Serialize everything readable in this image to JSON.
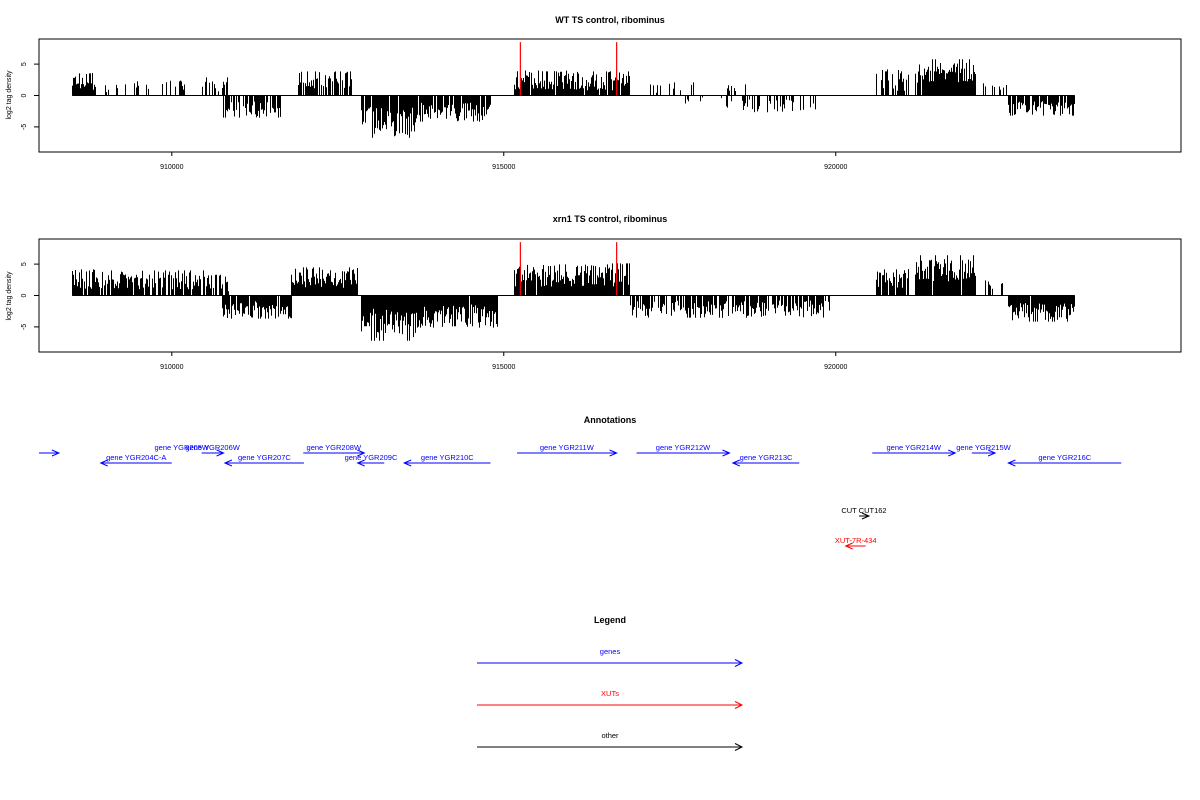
{
  "chart_data": [
    {
      "type": "bar",
      "title": "WT TS control, ribominus",
      "ylabel": "log2 tag density",
      "xlim": [
        908000,
        925200
      ],
      "ylim": [
        -9,
        9
      ],
      "x_ticks": [
        910000,
        915000,
        920000
      ],
      "x_tick_labels": [
        "910000",
        "915000",
        "920000"
      ],
      "y_ticks": [
        -5,
        0,
        5
      ],
      "y_tick_labels": [
        "-5",
        "0",
        "5"
      ],
      "bar_color": "#000000",
      "marker_color": "#ff0000",
      "markers": [
        {
          "x": 915250,
          "y": 8.5
        },
        {
          "x": 916700,
          "y": 8.5
        }
      ],
      "segments": [
        {
          "x0": 908500,
          "x1": 908850,
          "mean": 2.2,
          "amp": 1.4,
          "density": 0.9
        },
        {
          "x0": 909000,
          "x1": 910200,
          "mean": 1.4,
          "amp": 1.0,
          "density": 0.22
        },
        {
          "x0": 910450,
          "x1": 910850,
          "mean": 1.8,
          "amp": 1.2,
          "density": 0.55
        },
        {
          "x0": 910750,
          "x1": 911650,
          "mean": -2.2,
          "amp": 1.3,
          "density": 0.8
        },
        {
          "x0": 911900,
          "x1": 912700,
          "mean": 2.4,
          "amp": 1.5,
          "density": 0.7
        },
        {
          "x0": 912850,
          "x1": 913700,
          "mean": -4.2,
          "amp": 2.4,
          "density": 0.95
        },
        {
          "x0": 913700,
          "x1": 914800,
          "mean": -2.6,
          "amp": 1.5,
          "density": 0.85
        },
        {
          "x0": 915150,
          "x1": 916900,
          "mean": 2.4,
          "amp": 1.6,
          "density": 0.95
        },
        {
          "x0": 917200,
          "x1": 917900,
          "mean": 1.3,
          "amp": 0.9,
          "density": 0.25
        },
        {
          "x0": 917700,
          "x1": 918000,
          "mean": -0.8,
          "amp": 0.5,
          "density": 0.3
        },
        {
          "x0": 918200,
          "x1": 919700,
          "mean": -1.6,
          "amp": 1.2,
          "density": 0.35
        },
        {
          "x0": 918300,
          "x1": 918700,
          "mean": 1.2,
          "amp": 0.8,
          "density": 0.3
        },
        {
          "x0": 920600,
          "x1": 921100,
          "mean": 2.4,
          "amp": 1.8,
          "density": 0.7
        },
        {
          "x0": 921200,
          "x1": 922100,
          "mean": 3.6,
          "amp": 1.6,
          "density": 0.98
        },
        {
          "x0": 922200,
          "x1": 922600,
          "mean": 1.2,
          "amp": 0.8,
          "density": 0.3
        },
        {
          "x0": 922600,
          "x1": 923600,
          "mean": -2.0,
          "amp": 1.1,
          "density": 0.9
        }
      ]
    },
    {
      "type": "bar",
      "title": "xrn1 TS control, ribominus",
      "ylabel": "log2 tag density",
      "xlim": [
        908000,
        925200
      ],
      "ylim": [
        -9,
        9
      ],
      "x_ticks": [
        910000,
        915000,
        920000
      ],
      "x_tick_labels": [
        "910000",
        "915000",
        "920000"
      ],
      "y_ticks": [
        -5,
        0,
        5
      ],
      "y_tick_labels": [
        "-5",
        "0",
        "5"
      ],
      "bar_color": "#000000",
      "marker_color": "#ff0000",
      "markers": [
        {
          "x": 915250,
          "y": 8.5
        },
        {
          "x": 916700,
          "y": 8.5
        }
      ],
      "segments": [
        {
          "x0": 908500,
          "x1": 908900,
          "mean": 2.6,
          "amp": 1.6,
          "density": 0.95
        },
        {
          "x0": 908900,
          "x1": 910500,
          "mean": 2.5,
          "amp": 1.5,
          "density": 0.85
        },
        {
          "x0": 910500,
          "x1": 910850,
          "mean": 2.0,
          "amp": 1.4,
          "density": 0.7
        },
        {
          "x0": 910750,
          "x1": 911800,
          "mean": -2.3,
          "amp": 1.4,
          "density": 0.9
        },
        {
          "x0": 911800,
          "x1": 912800,
          "mean": 2.8,
          "amp": 1.6,
          "density": 0.95
        },
        {
          "x0": 912850,
          "x1": 913700,
          "mean": -4.5,
          "amp": 2.5,
          "density": 0.98
        },
        {
          "x0": 913700,
          "x1": 914900,
          "mean": -3.2,
          "amp": 1.8,
          "density": 0.95
        },
        {
          "x0": 915150,
          "x1": 916900,
          "mean": 3.2,
          "amp": 1.8,
          "density": 0.98
        },
        {
          "x0": 916900,
          "x1": 919900,
          "mean": -2.2,
          "amp": 1.4,
          "density": 0.75
        },
        {
          "x0": 920600,
          "x1": 921100,
          "mean": 2.6,
          "amp": 1.8,
          "density": 0.8
        },
        {
          "x0": 921200,
          "x1": 922100,
          "mean": 4.0,
          "amp": 1.8,
          "density": 0.98
        },
        {
          "x0": 922200,
          "x1": 922600,
          "mean": 1.5,
          "amp": 0.9,
          "density": 0.4
        },
        {
          "x0": 922600,
          "x1": 923600,
          "mean": -2.6,
          "amp": 1.4,
          "density": 0.95
        }
      ]
    },
    {
      "type": "annotation-track",
      "title": "Annotations",
      "xlim": [
        908000,
        925200
      ],
      "features": [
        {
          "label": "gene YGR204C-A",
          "x0": 908930,
          "x1": 910000,
          "strand": "-",
          "row": 2,
          "color": "#0000ff"
        },
        {
          "label": "gene YGR205W",
          "x0": 907300,
          "x1": 908300,
          "strand": "+",
          "row": 1,
          "color": "#0000ff",
          "label_x": 910150
        },
        {
          "label": "gene YGR206W",
          "x0": 910450,
          "x1": 910780,
          "strand": "+",
          "row": 1,
          "color": "#0000ff"
        },
        {
          "label": "gene YGR207C",
          "x0": 910800,
          "x1": 911990,
          "strand": "-",
          "row": 2,
          "color": "#0000ff"
        },
        {
          "label": "gene YGR208W",
          "x0": 911980,
          "x1": 912900,
          "strand": "+",
          "row": 1,
          "color": "#0000ff"
        },
        {
          "label": "gene YGR209C",
          "x0": 912800,
          "x1": 913200,
          "strand": "-",
          "row": 2,
          "color": "#0000ff"
        },
        {
          "label": "gene YGR210C",
          "x0": 913500,
          "x1": 914800,
          "strand": "-",
          "row": 2,
          "color": "#0000ff"
        },
        {
          "label": "gene YGR211W",
          "x0": 915200,
          "x1": 916700,
          "strand": "+",
          "row": 1,
          "color": "#0000ff"
        },
        {
          "label": "gene YGR212W",
          "x0": 917000,
          "x1": 918400,
          "strand": "+",
          "row": 1,
          "color": "#0000ff"
        },
        {
          "label": "gene YGR213C",
          "x0": 918450,
          "x1": 919450,
          "strand": "-",
          "row": 2,
          "color": "#0000ff"
        },
        {
          "label": "gene YGR214W",
          "x0": 920550,
          "x1": 921800,
          "strand": "+",
          "row": 1,
          "color": "#0000ff"
        },
        {
          "label": "gene YGR215W",
          "x0": 922050,
          "x1": 922400,
          "strand": "+",
          "row": 1,
          "color": "#0000ff"
        },
        {
          "label": "gene YGR216C",
          "x0": 922600,
          "x1": 924300,
          "strand": "-",
          "row": 2,
          "color": "#0000ff"
        },
        {
          "label": "CUT CUT162",
          "x0": 920350,
          "x1": 920500,
          "strand": "+",
          "row": 4,
          "color": "#000000"
        },
        {
          "label": "XUT-7R-434",
          "x0": 920150,
          "x1": 920450,
          "strand": "-",
          "row": 5,
          "color": "#ff0000"
        }
      ]
    },
    {
      "type": "legend",
      "title": "Legend",
      "entries": [
        {
          "label": "genes",
          "color": "#0000ff"
        },
        {
          "label": "XUTs",
          "color": "#ff0000"
        },
        {
          "label": "other",
          "color": "#000000"
        }
      ]
    }
  ]
}
